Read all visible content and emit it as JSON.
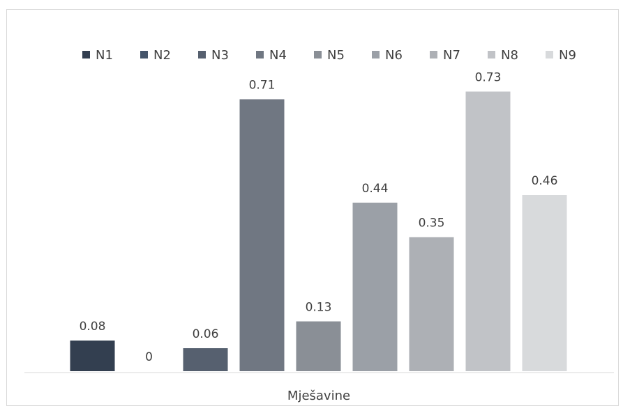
{
  "chart_data": {
    "type": "bar",
    "categories": [
      "Mješavine"
    ],
    "series": [
      {
        "name": "N1",
        "values": [
          0.08
        ],
        "color": "#333f50"
      },
      {
        "name": "N2",
        "values": [
          0
        ],
        "color": "#44546a"
      },
      {
        "name": "N3",
        "values": [
          0.06
        ],
        "color": "#56606f"
      },
      {
        "name": "N4",
        "values": [
          0.71
        ],
        "color": "#707782"
      },
      {
        "name": "N5",
        "values": [
          0.13
        ],
        "color": "#8a8f96"
      },
      {
        "name": "N6",
        "values": [
          0.44
        ],
        "color": "#9ba0a7"
      },
      {
        "name": "N7",
        "values": [
          0.35
        ],
        "color": "#adb0b5"
      },
      {
        "name": "N8",
        "values": [
          0.73
        ],
        "color": "#c1c3c7"
      },
      {
        "name": "N9",
        "values": [
          0.46
        ],
        "color": "#d8dadc"
      }
    ],
    "data_labels": [
      "0.08",
      "0",
      "0.06",
      "0.71",
      "0.13",
      "0.44",
      "0.35",
      "0.73",
      "0.46"
    ],
    "title": "",
    "xlabel": "",
    "ylabel": "",
    "ylim": [
      0,
      0.8
    ],
    "grid": false,
    "legend": "top",
    "show_y_axis": false
  }
}
